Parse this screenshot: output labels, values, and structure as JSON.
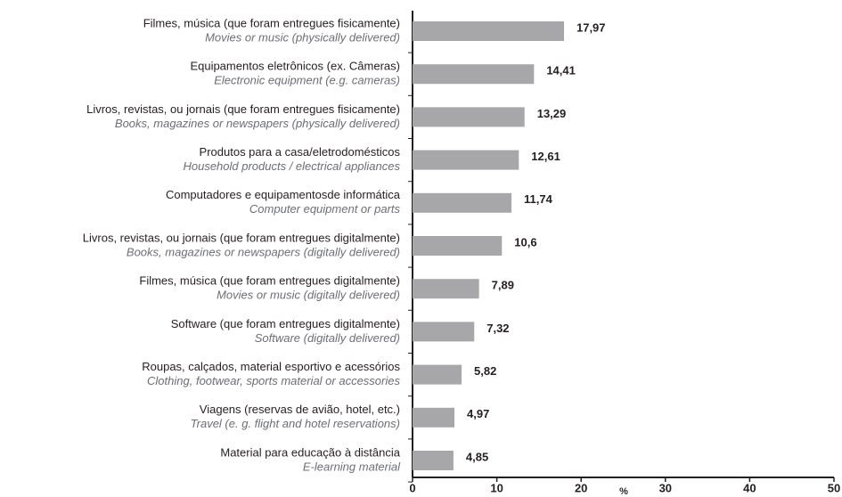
{
  "chart_data": {
    "type": "bar",
    "orientation": "horizontal",
    "categories": [
      "Filmes, música (que foram entregues fisicamente)",
      "Equipamentos eletrônicos (ex. Câmeras)",
      "Livros, revistas, ou jornais (que foram entregues fisicamente)",
      "Produtos para a casa/eletrodomésticos",
      "Computadores e equipamentosde informática",
      "Livros, revistas, ou jornais (que foram entregues digitalmente)",
      "Filmes, música (que foram entregues digitalmente)",
      "Software (que foram entregues digitalmente)",
      "Roupas, calçados, material esportivo e acessórios",
      "Viagens (reservas de avião, hotel, etc.)",
      "Material para educação à distância"
    ],
    "categories_en": [
      "Movies or music (physically delivered)",
      "Electronic equipment (e.g. cameras)",
      "Books, magazines or newspapers (physically delivered)",
      "Household products / electrical appliances",
      "Computer equipment or parts",
      "Books, magazines or newspapers (digitally delivered)",
      "Movies or music (digitally delivered)",
      "Software (digitally delivered)",
      "Clothing, footwear, sports material or accessories",
      "Travel (e. g. flight and hotel reservations)",
      "E-learning material"
    ],
    "values": [
      17.97,
      14.41,
      13.29,
      12.61,
      11.74,
      10.6,
      7.89,
      7.32,
      5.82,
      4.97,
      4.85
    ],
    "value_labels": [
      "17,97",
      "14,41",
      "13,29",
      "12,61",
      "11,74",
      "10,6",
      "7,89",
      "7,32",
      "5,82",
      "4,97",
      "4,85"
    ],
    "color": "#a7a7a9",
    "xlabel": "%",
    "xlim": [
      0,
      50
    ],
    "xticks": [
      0,
      10,
      20,
      30,
      40,
      50
    ]
  }
}
